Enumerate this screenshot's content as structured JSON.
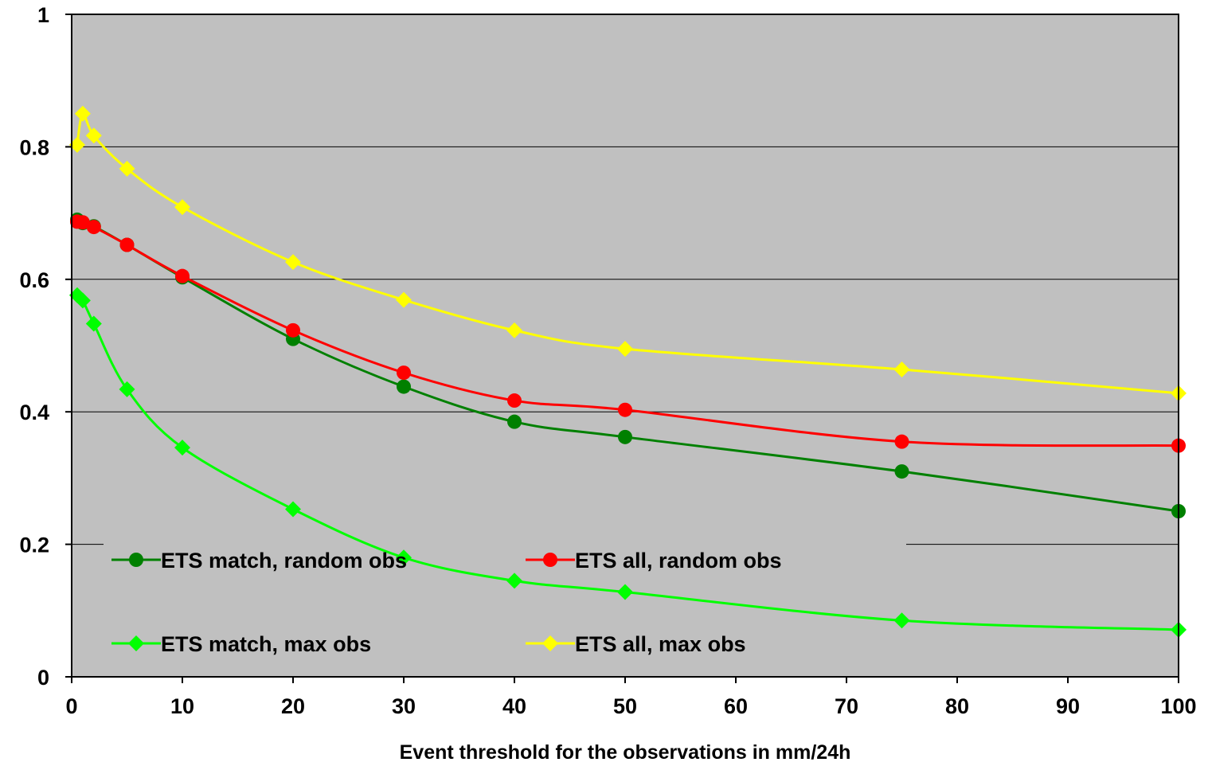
{
  "chart_data": {
    "type": "line",
    "title": "",
    "xlabel": "Event threshold for the observations in mm/24h",
    "ylabel": "",
    "xlim": [
      0,
      100
    ],
    "ylim": [
      0,
      1
    ],
    "x_ticks": [
      0,
      10,
      20,
      30,
      40,
      50,
      60,
      70,
      80,
      90,
      100
    ],
    "y_ticks": [
      0,
      0.2,
      0.4,
      0.6,
      0.8,
      1
    ],
    "x_tick_labels": [
      "0",
      "10",
      "20",
      "30",
      "40",
      "50",
      "60",
      "70",
      "80",
      "90",
      "100"
    ],
    "y_tick_labels": [
      "0",
      "0.2",
      "0.4",
      "0.6",
      "0.8",
      "1"
    ],
    "grid": "horizontal",
    "plot_background": "#c0c0c0",
    "legend_position": "lower-left inside plot",
    "series": [
      {
        "name": "ETS match, random obs",
        "color": "#008000",
        "marker": "circle",
        "x": [
          0.5,
          1,
          2,
          5,
          10,
          20,
          30,
          40,
          50,
          75,
          100
        ],
        "y": [
          0.69,
          0.685,
          0.68,
          0.652,
          0.603,
          0.51,
          0.438,
          0.385,
          0.362,
          0.31,
          0.25
        ]
      },
      {
        "name": "ETS all, random obs",
        "color": "#ff0000",
        "marker": "circle",
        "x": [
          0.5,
          1,
          2,
          5,
          10,
          20,
          30,
          40,
          50,
          75,
          100
        ],
        "y": [
          0.687,
          0.686,
          0.679,
          0.652,
          0.605,
          0.523,
          0.459,
          0.417,
          0.403,
          0.355,
          0.349
        ]
      },
      {
        "name": "ETS match, max obs",
        "color": "#00ff00",
        "marker": "diamond",
        "x": [
          0.5,
          1,
          2,
          5,
          10,
          20,
          30,
          40,
          50,
          75,
          100
        ],
        "y": [
          0.576,
          0.568,
          0.533,
          0.434,
          0.346,
          0.253,
          0.18,
          0.145,
          0.128,
          0.085,
          0.071
        ]
      },
      {
        "name": "ETS all, max obs",
        "color": "#ffff00",
        "marker": "diamond",
        "x": [
          0.5,
          1,
          2,
          5,
          10,
          20,
          30,
          40,
          50,
          75,
          100
        ],
        "y": [
          0.803,
          0.85,
          0.817,
          0.767,
          0.709,
          0.626,
          0.569,
          0.523,
          0.495,
          0.464,
          0.428
        ]
      }
    ]
  }
}
